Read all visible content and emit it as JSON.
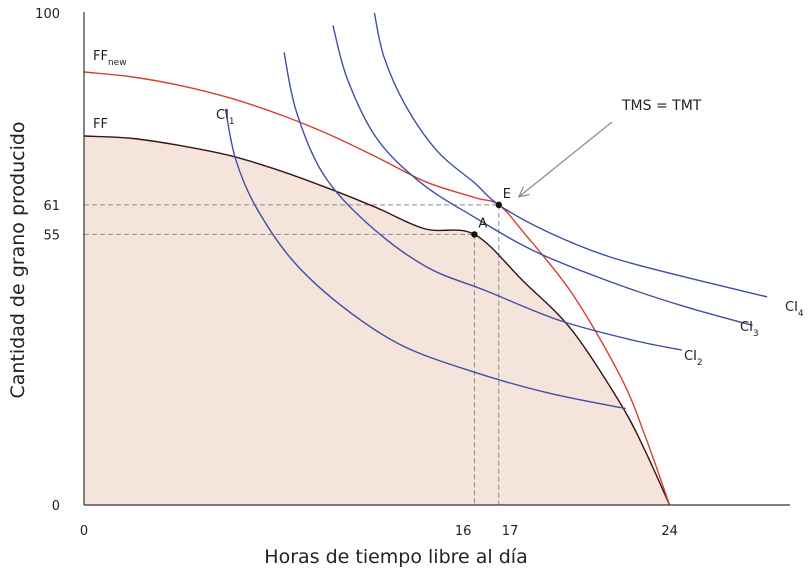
{
  "chart_data": {
    "type": "line",
    "title": "",
    "xlabel": "Horas de tiempo libre al día",
    "ylabel": "Cantidad de grano producido",
    "xlim": [
      0,
      27.5
    ],
    "ylim": [
      0,
      100
    ],
    "x_ticks": [
      "0",
      "16",
      "17",
      "24"
    ],
    "y_ticks": [
      "0",
      "55",
      "61",
      "100"
    ],
    "grid": false,
    "colors": {
      "ff": "#3a1212",
      "ff_new": "#d4402f",
      "ci": "#3f4fa6",
      "shade": "#f5e4dc",
      "guide": "#8a8a8a",
      "arrow": "#8a8a8a"
    },
    "series": [
      {
        "name": "FF",
        "kind": "ppf",
        "points": [
          [
            0,
            75
          ],
          [
            2,
            74.5
          ],
          [
            4,
            73
          ],
          [
            6,
            71
          ],
          [
            8,
            68
          ],
          [
            10,
            64.4
          ],
          [
            12,
            60.4
          ],
          [
            14,
            56.1
          ],
          [
            16,
            55
          ],
          [
            18,
            45.5
          ],
          [
            20,
            35.5
          ],
          [
            22,
            20.5
          ],
          [
            23,
            11
          ],
          [
            24,
            0
          ]
        ]
      },
      {
        "name": "FF",
        "sub": "new",
        "kind": "ppf",
        "points": [
          [
            0,
            88
          ],
          [
            2,
            87
          ],
          [
            4,
            85.2
          ],
          [
            6,
            82.7
          ],
          [
            8,
            79.4
          ],
          [
            10,
            75.4
          ],
          [
            12,
            70.7
          ],
          [
            14,
            65.7
          ],
          [
            16,
            62.5
          ],
          [
            17,
            61
          ],
          [
            18,
            55.5
          ],
          [
            20,
            43
          ],
          [
            22,
            26
          ],
          [
            23,
            14
          ],
          [
            24,
            0
          ]
        ]
      },
      {
        "name": "CI",
        "sub": "1",
        "kind": "indifference",
        "points": [
          [
            5.8,
            80.5
          ],
          [
            6.2,
            70.5
          ],
          [
            7,
            61
          ],
          [
            8.5,
            50
          ],
          [
            10.5,
            40.7
          ],
          [
            13,
            32.5
          ],
          [
            16,
            27
          ],
          [
            19,
            22.8
          ],
          [
            22.2,
            19.6
          ]
        ]
      },
      {
        "name": "CI",
        "sub": "2",
        "kind": "indifference",
        "points": [
          [
            8.2,
            92
          ],
          [
            8.7,
            80
          ],
          [
            9.8,
            67.3
          ],
          [
            11.6,
            57.3
          ],
          [
            14,
            48.5
          ],
          [
            16.5,
            43.5
          ],
          [
            19.5,
            37.5
          ],
          [
            22.5,
            33.5
          ],
          [
            24.5,
            31.5
          ]
        ]
      },
      {
        "name": "CI",
        "sub": "3",
        "kind": "indifference",
        "points": [
          [
            10.2,
            97.5
          ],
          [
            10.8,
            86.5
          ],
          [
            12,
            74.5
          ],
          [
            13.8,
            65.5
          ],
          [
            16,
            58.5
          ],
          [
            18.5,
            51.5
          ],
          [
            21.5,
            45.5
          ],
          [
            24.5,
            40.5
          ],
          [
            27.4,
            36.5
          ]
        ]
      },
      {
        "name": "CI",
        "sub": "4",
        "kind": "indifference",
        "points": [
          [
            11.9,
            100
          ],
          [
            12.3,
            91
          ],
          [
            13.2,
            81
          ],
          [
            14.5,
            71.8
          ],
          [
            16,
            65.5
          ],
          [
            17,
            61
          ],
          [
            19,
            55.5
          ],
          [
            21.5,
            50.5
          ],
          [
            24.5,
            46.5
          ],
          [
            28,
            42.3
          ]
        ]
      }
    ],
    "points": [
      {
        "label": "A",
        "x": 16,
        "y": 55
      },
      {
        "label": "E",
        "x": 17,
        "y": 61
      }
    ],
    "annotation": {
      "text": "TMS = TMT",
      "target": "E"
    }
  }
}
